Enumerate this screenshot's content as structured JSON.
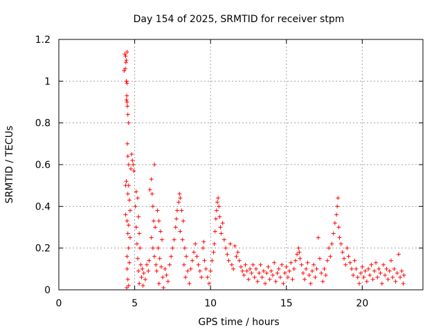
{
  "chart_data": {
    "type": "scatter",
    "title": "Day 154 of 2025, SRMTID for receiver stpm",
    "xlabel": "GPS time / hours",
    "ylabel": "SRMTID / TECUs",
    "xlim": [
      0,
      24
    ],
    "ylim": [
      0,
      1.2
    ],
    "xticks": [
      0,
      5,
      10,
      15,
      20
    ],
    "xtick_labels": [
      "0",
      "5",
      "10",
      "15",
      "20"
    ],
    "yticks": [
      0,
      0.2,
      0.4,
      0.6,
      0.8,
      1.0,
      1.2
    ],
    "ytick_labels": [
      "0",
      "0.2",
      "0.4",
      "0.6",
      "0.8",
      "1",
      "1.2"
    ],
    "grid": true,
    "marker": "plus",
    "series": [
      {
        "name": "SRMTID",
        "color": "#ff0000",
        "points": [
          [
            4.3,
            1.05
          ],
          [
            4.35,
            1.13
          ],
          [
            4.4,
            1.12
          ],
          [
            4.42,
            1.09
          ],
          [
            4.45,
            1.1
          ],
          [
            4.5,
            1.14
          ],
          [
            4.38,
            1.06
          ],
          [
            4.45,
            1.0
          ],
          [
            4.5,
            0.99
          ],
          [
            4.48,
            0.93
          ],
          [
            4.5,
            0.9
          ],
          [
            4.52,
            0.88
          ],
          [
            4.46,
            0.91
          ],
          [
            4.55,
            0.84
          ],
          [
            4.6,
            0.8
          ],
          [
            4.52,
            0.7
          ],
          [
            4.55,
            0.64
          ],
          [
            4.6,
            0.6
          ],
          [
            4.8,
            0.65
          ],
          [
            4.85,
            0.62
          ],
          [
            4.9,
            0.6
          ],
          [
            4.75,
            0.58
          ],
          [
            4.95,
            0.57
          ],
          [
            4.4,
            0.5
          ],
          [
            4.45,
            0.52
          ],
          [
            4.55,
            0.46
          ],
          [
            4.6,
            0.5
          ],
          [
            4.65,
            0.43
          ],
          [
            4.7,
            0.38
          ],
          [
            4.4,
            0.36
          ],
          [
            4.5,
            0.33
          ],
          [
            4.6,
            0.31
          ],
          [
            4.55,
            0.27
          ],
          [
            4.7,
            0.25
          ],
          [
            4.6,
            0.2
          ],
          [
            4.5,
            0.16
          ],
          [
            4.65,
            0.13
          ],
          [
            4.5,
            0.1
          ],
          [
            4.55,
            0.05
          ],
          [
            4.6,
            0.02
          ],
          [
            4.48,
            0.01
          ],
          [
            5.1,
            0.47
          ],
          [
            5.2,
            0.44
          ],
          [
            5.05,
            0.4
          ],
          [
            5.25,
            0.35
          ],
          [
            5.1,
            0.3
          ],
          [
            5.3,
            0.27
          ],
          [
            5.15,
            0.22
          ],
          [
            5.35,
            0.2
          ],
          [
            5.2,
            0.15
          ],
          [
            5.4,
            0.12
          ],
          [
            5.25,
            0.09
          ],
          [
            5.45,
            0.06
          ],
          [
            5.3,
            0.03
          ],
          [
            5.5,
            0.1
          ],
          [
            5.6,
            0.08
          ],
          [
            5.7,
            0.05
          ],
          [
            5.55,
            0.02
          ],
          [
            5.8,
            0.12
          ],
          [
            5.9,
            0.09
          ],
          [
            5.95,
            0.14
          ],
          [
            6.0,
            0.48
          ],
          [
            6.1,
            0.53
          ],
          [
            6.15,
            0.46
          ],
          [
            6.2,
            0.4
          ],
          [
            6.25,
            0.33
          ],
          [
            6.3,
            0.6
          ],
          [
            6.35,
            0.3
          ],
          [
            6.1,
            0.25
          ],
          [
            6.2,
            0.2
          ],
          [
            6.3,
            0.16
          ],
          [
            6.4,
            0.12
          ],
          [
            6.45,
            0.09
          ],
          [
            6.5,
            0.38
          ],
          [
            6.6,
            0.33
          ],
          [
            6.7,
            0.28
          ],
          [
            6.8,
            0.24
          ],
          [
            6.55,
            0.2
          ],
          [
            6.65,
            0.15
          ],
          [
            6.75,
            0.11
          ],
          [
            6.85,
            0.06
          ],
          [
            6.6,
            0.03
          ],
          [
            6.9,
            0.01
          ],
          [
            7.0,
            0.1
          ],
          [
            7.1,
            0.07
          ],
          [
            7.2,
            0.04
          ],
          [
            7.3,
            0.12
          ],
          [
            7.4,
            0.16
          ],
          [
            7.5,
            0.2
          ],
          [
            7.6,
            0.24
          ],
          [
            7.7,
            0.3
          ],
          [
            7.75,
            0.34
          ],
          [
            7.8,
            0.38
          ],
          [
            7.9,
            0.42
          ],
          [
            7.95,
            0.46
          ],
          [
            8.0,
            0.44
          ],
          [
            8.1,
            0.38
          ],
          [
            8.2,
            0.33
          ],
          [
            8.0,
            0.28
          ],
          [
            8.15,
            0.24
          ],
          [
            8.3,
            0.2
          ],
          [
            8.4,
            0.16
          ],
          [
            8.25,
            0.12
          ],
          [
            8.5,
            0.09
          ],
          [
            8.35,
            0.06
          ],
          [
            8.6,
            0.03
          ],
          [
            8.7,
            0.1
          ],
          [
            8.8,
            0.14
          ],
          [
            8.9,
            0.18
          ],
          [
            9.0,
            0.22
          ],
          [
            9.1,
            0.16
          ],
          [
            9.2,
            0.12
          ],
          [
            9.3,
            0.09
          ],
          [
            9.4,
            0.06
          ],
          [
            9.5,
            0.2
          ],
          [
            9.55,
            0.23
          ],
          [
            9.6,
            0.14
          ],
          [
            9.7,
            0.1
          ],
          [
            9.8,
            0.06
          ],
          [
            9.9,
            0.03
          ],
          [
            10.0,
            0.09
          ],
          [
            10.1,
            0.14
          ],
          [
            10.2,
            0.18
          ],
          [
            10.25,
            0.22
          ],
          [
            10.3,
            0.28
          ],
          [
            10.35,
            0.34
          ],
          [
            10.4,
            0.38
          ],
          [
            10.45,
            0.42
          ],
          [
            10.5,
            0.44
          ],
          [
            10.55,
            0.4
          ],
          [
            10.6,
            0.35
          ],
          [
            10.65,
            0.3
          ],
          [
            10.7,
            0.27
          ],
          [
            10.8,
            0.32
          ],
          [
            10.9,
            0.24
          ],
          [
            11.0,
            0.2
          ],
          [
            11.1,
            0.17
          ],
          [
            11.2,
            0.14
          ],
          [
            11.3,
            0.22
          ],
          [
            11.4,
            0.12
          ],
          [
            11.5,
            0.1
          ],
          [
            11.6,
            0.21
          ],
          [
            11.7,
            0.16
          ],
          [
            11.8,
            0.18
          ],
          [
            11.9,
            0.14
          ],
          [
            12.0,
            0.11
          ],
          [
            12.1,
            0.09
          ],
          [
            12.2,
            0.07
          ],
          [
            12.3,
            0.12
          ],
          [
            12.4,
            0.09
          ],
          [
            12.5,
            0.05
          ],
          [
            12.6,
            0.1
          ],
          [
            12.7,
            0.08
          ],
          [
            12.8,
            0.12
          ],
          [
            12.9,
            0.06
          ],
          [
            13.0,
            0.1
          ],
          [
            13.1,
            0.04
          ],
          [
            13.2,
            0.08
          ],
          [
            13.3,
            0.12
          ],
          [
            13.4,
            0.06
          ],
          [
            13.5,
            0.09
          ],
          [
            13.6,
            0.03
          ],
          [
            13.7,
            0.08
          ],
          [
            13.8,
            0.11
          ],
          [
            13.9,
            0.05
          ],
          [
            14.0,
            0.09
          ],
          [
            14.1,
            0.07
          ],
          [
            14.2,
            0.13
          ],
          [
            14.3,
            0.04
          ],
          [
            14.4,
            0.08
          ],
          [
            14.5,
            0.1
          ],
          [
            14.6,
            0.06
          ],
          [
            14.7,
            0.12
          ],
          [
            14.8,
            0.03
          ],
          [
            14.9,
            0.08
          ],
          [
            15.0,
            0.11
          ],
          [
            15.1,
            0.06
          ],
          [
            15.2,
            0.09
          ],
          [
            15.3,
            0.13
          ],
          [
            15.4,
            0.05
          ],
          [
            15.5,
            0.1
          ],
          [
            15.6,
            0.14
          ],
          [
            15.7,
            0.17
          ],
          [
            15.8,
            0.2
          ],
          [
            15.85,
            0.18
          ],
          [
            15.9,
            0.15
          ],
          [
            16.0,
            0.12
          ],
          [
            16.1,
            0.08
          ],
          [
            16.2,
            0.05
          ],
          [
            16.3,
            0.1
          ],
          [
            16.4,
            0.13
          ],
          [
            16.5,
            0.07
          ],
          [
            16.6,
            0.03
          ],
          [
            16.7,
            0.09
          ],
          [
            16.8,
            0.12
          ],
          [
            16.9,
            0.06
          ],
          [
            17.0,
            0.1
          ],
          [
            17.1,
            0.25
          ],
          [
            17.2,
            0.15
          ],
          [
            17.3,
            0.08
          ],
          [
            17.4,
            0.04
          ],
          [
            17.5,
            0.1
          ],
          [
            17.6,
            0.07
          ],
          [
            17.7,
            0.14
          ],
          [
            17.8,
            0.2
          ],
          [
            17.9,
            0.16
          ],
          [
            18.0,
            0.22
          ],
          [
            18.1,
            0.27
          ],
          [
            18.2,
            0.32
          ],
          [
            18.3,
            0.36
          ],
          [
            18.35,
            0.4
          ],
          [
            18.4,
            0.44
          ],
          [
            18.45,
            0.3
          ],
          [
            18.5,
            0.25
          ],
          [
            18.6,
            0.22
          ],
          [
            18.7,
            0.18
          ],
          [
            18.8,
            0.15
          ],
          [
            18.9,
            0.12
          ],
          [
            19.0,
            0.2
          ],
          [
            19.1,
            0.16
          ],
          [
            19.2,
            0.13
          ],
          [
            19.3,
            0.1
          ],
          [
            19.4,
            0.07
          ],
          [
            19.5,
            0.14
          ],
          [
            19.6,
            0.1
          ],
          [
            19.7,
            0.06
          ],
          [
            19.8,
            0.03
          ],
          [
            19.9,
            0.08
          ],
          [
            20.0,
            0.11
          ],
          [
            20.1,
            0.06
          ],
          [
            20.2,
            0.09
          ],
          [
            20.3,
            0.04
          ],
          [
            20.4,
            0.1
          ],
          [
            20.5,
            0.07
          ],
          [
            20.6,
            0.12
          ],
          [
            20.7,
            0.05
          ],
          [
            20.8,
            0.09
          ],
          [
            20.9,
            0.13
          ],
          [
            21.0,
            0.06
          ],
          [
            21.1,
            0.1
          ],
          [
            21.2,
            0.08
          ],
          [
            21.3,
            0.03
          ],
          [
            21.4,
            0.12
          ],
          [
            21.5,
            0.07
          ],
          [
            21.6,
            0.1
          ],
          [
            21.7,
            0.05
          ],
          [
            21.8,
            0.09
          ],
          [
            21.9,
            0.14
          ],
          [
            22.0,
            0.06
          ],
          [
            22.1,
            0.1
          ],
          [
            22.2,
            0.04
          ],
          [
            22.3,
            0.08
          ],
          [
            22.4,
            0.17
          ],
          [
            22.5,
            0.06
          ],
          [
            22.6,
            0.09
          ],
          [
            22.7,
            0.03
          ],
          [
            22.75,
            0.07
          ]
        ]
      }
    ]
  }
}
